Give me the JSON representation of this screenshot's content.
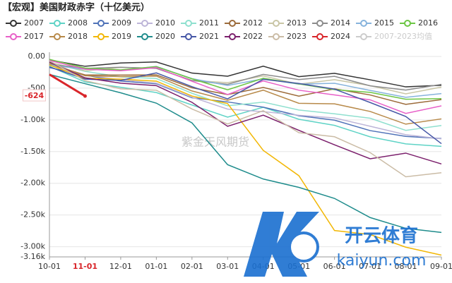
{
  "chart_data": {
    "type": "line",
    "title": "【宏观】美国财政赤字（十亿美元）",
    "watermark": "紫金天风期货",
    "logo_text": "开云体育",
    "logo_url": "kaiyun.com",
    "categories": [
      "10-01",
      "11-01",
      "12-01",
      "01-01",
      "02-01",
      "03-01",
      "04-01",
      "05-01",
      "06-01",
      "07-01",
      "08-01",
      "09-01"
    ],
    "highlight_index": 1,
    "highlight_color": "#d9262b",
    "ylim": [
      -3160,
      0
    ],
    "yticks": [
      {
        "value": 0,
        "label": "0.00"
      },
      -500,
      {
        "value": -1000,
        "label": "-1.00k"
      },
      {
        "value": -1500,
        "label": "-1.50k"
      },
      {
        "value": -2000,
        "label": "-2.00k"
      },
      {
        "value": -2500,
        "label": "-2.50k"
      },
      {
        "value": -3000,
        "label": "-3.00k"
      },
      {
        "value": -3160,
        "label": "-3.16k"
      }
    ],
    "grid": true,
    "legend": "top",
    "series": [
      {
        "name": "2007",
        "color": "#333333",
        "values": [
          -56,
          -155,
          -103,
          -86,
          -262,
          -311,
          -153,
          -318,
          -266,
          -368,
          -479,
          -455
        ]
      },
      {
        "name": "2008",
        "color": "#5fd3c6",
        "values": [
          -155,
          -402,
          -485,
          -569,
          -765,
          -956,
          -802,
          -990,
          -1086,
          -1267,
          -1378,
          -1417
        ]
      },
      {
        "name": "2009",
        "color": "#4f72b8",
        "values": [
          -176,
          -296,
          -388,
          -431,
          -651,
          -717,
          -799,
          -935,
          -1004,
          -1169,
          -1260,
          -1294
        ]
      },
      {
        "name": "2010",
        "color": "#bdb5d8",
        "values": [
          -140,
          -290,
          -370,
          -420,
          -642,
          -830,
          -870,
          -927,
          -970,
          -1100,
          -1234,
          -1299
        ]
      },
      {
        "name": "2011",
        "color": "#8fe0cf",
        "values": [
          -98,
          -235,
          -321,
          -348,
          -580,
          -778,
          -720,
          -844,
          -904,
          -974,
          -1165,
          -1089
        ]
      },
      {
        "name": "2012",
        "color": "#9c6b3a",
        "values": [
          -120,
          -292,
          -293,
          -290,
          -494,
          -600,
          -488,
          -626,
          -510,
          -607,
          -755,
          -680
        ]
      },
      {
        "name": "2013",
        "color": "#c9c6a6",
        "values": [
          -91,
          -226,
          -174,
          -184,
          -378,
          -413,
          -307,
          -436,
          -366,
          -460,
          -589,
          -483
        ]
      },
      {
        "name": "2014",
        "color": "#8c8c8c",
        "values": [
          -122,
          -187,
          -170,
          -188,
          -380,
          -439,
          -283,
          -365,
          -313,
          -463,
          -530,
          -439
        ]
      },
      {
        "name": "2015",
        "color": "#86b3dc",
        "values": [
          -136,
          -201,
          -215,
          -157,
          -349,
          -458,
          -352,
          -437,
          -423,
          -536,
          -644,
          -585
        ]
      },
      {
        "name": "2016",
        "color": "#6cc644",
        "values": [
          -45,
          -183,
          -211,
          -160,
          -352,
          -526,
          -344,
          -433,
          -523,
          -566,
          -674,
          -665
        ]
      },
      {
        "name": "2017",
        "color": "#e860c8",
        "values": [
          -63,
          -201,
          -225,
          -176,
          -391,
          -600,
          -386,
          -532,
          -607,
          -684,
          -898,
          -779
        ]
      },
      {
        "name": "2018",
        "color": "#b88a4a",
        "values": [
          -100,
          -305,
          -319,
          -310,
          -544,
          -691,
          -531,
          -738,
          -747,
          -867,
          -1067,
          -984
        ]
      },
      {
        "name": "2019",
        "color": "#f2b705",
        "values": [
          -134,
          -343,
          -357,
          -389,
          -624,
          -743,
          -1481,
          -1880,
          -2744,
          -2807,
          -3007,
          -3132
        ]
      },
      {
        "name": "2020",
        "color": "#1f8c8c",
        "values": [
          -284,
          -429,
          -573,
          -736,
          -1047,
          -1706,
          -1932,
          -2064,
          -2238,
          -2540,
          -2710,
          -2775
        ]
      },
      {
        "name": "2021",
        "color": "#4657a6",
        "values": [
          -165,
          -357,
          -377,
          -259,
          -476,
          -668,
          -360,
          -426,
          -515,
          -726,
          -946,
          -1375
        ]
      },
      {
        "name": "2022",
        "color": "#7b1f6c",
        "values": [
          -88,
          -337,
          -421,
          -460,
          -723,
          -1101,
          -925,
          -1165,
          -1393,
          -1613,
          -1524,
          -1695
        ]
      },
      {
        "name": "2023",
        "color": "#cbbca6",
        "values": [
          -67,
          -381,
          -510,
          -532,
          -828,
          -1065,
          -855,
          -1202,
          -1266,
          -1516,
          -1897,
          -1833
        ]
      },
      {
        "name": "2024",
        "color": "#d9262b",
        "line_width": 3,
        "data_labels": true,
        "values": [
          -284,
          -624,
          null,
          null,
          null,
          null,
          null,
          null,
          null,
          null,
          null,
          null
        ]
      },
      {
        "name": "2007-2023均值",
        "color": "#cccccc",
        "hidden": true,
        "values": [
          null,
          null,
          null,
          null,
          null,
          null,
          null,
          null,
          null,
          null,
          null,
          null
        ]
      }
    ]
  }
}
